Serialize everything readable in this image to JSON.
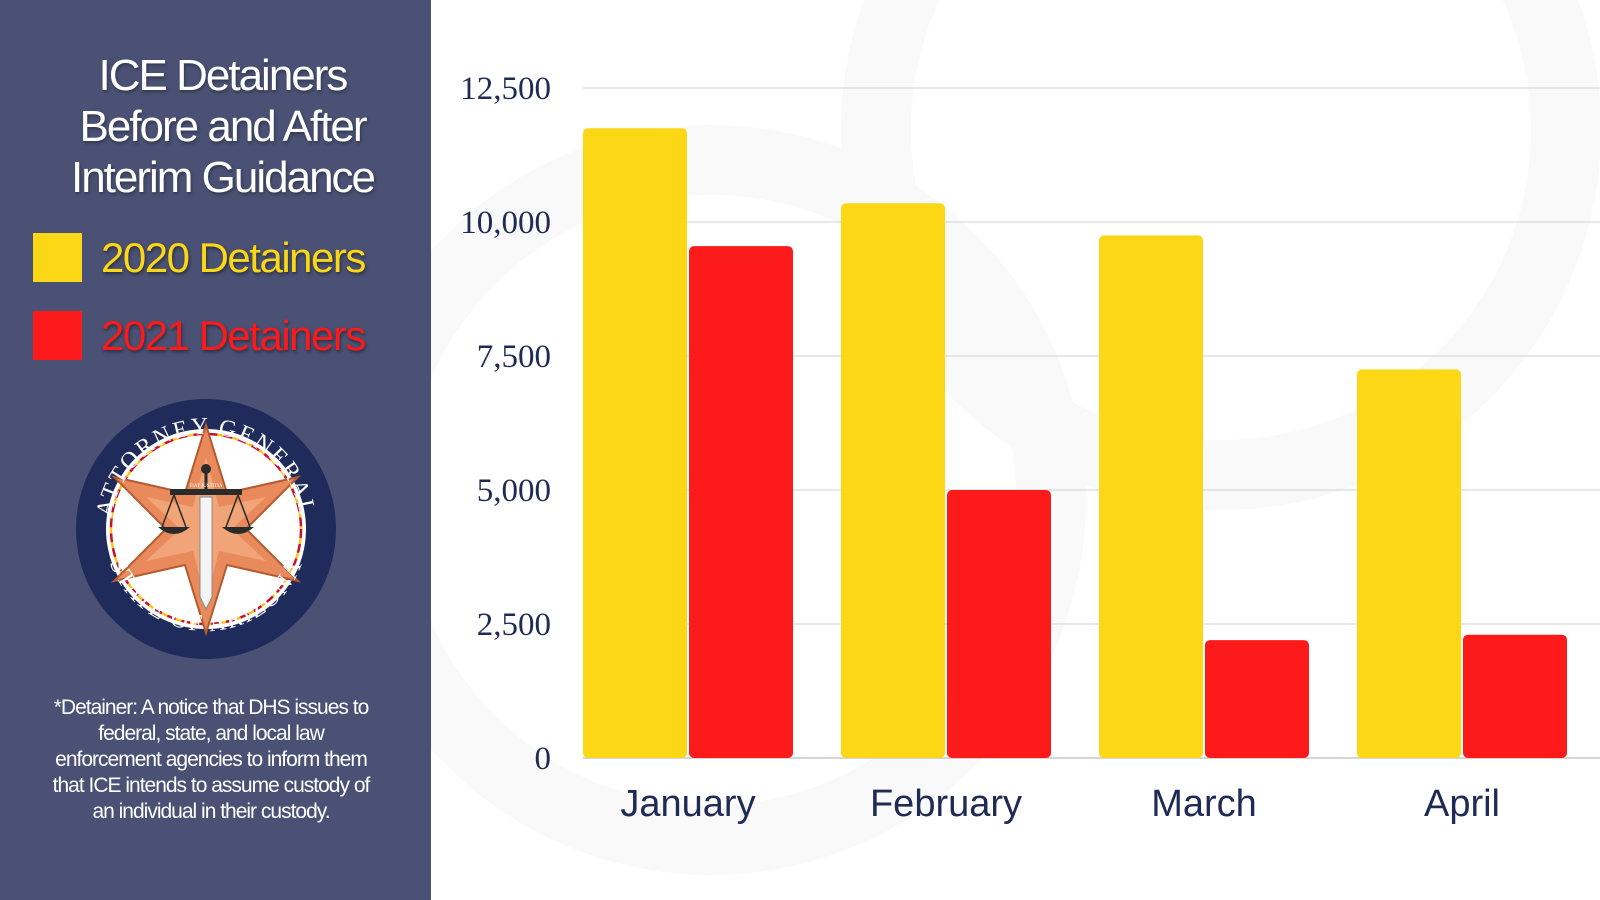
{
  "title_lines": [
    "ICE Detainers",
    "Before and After",
    "Interim Guidance"
  ],
  "legend": [
    {
      "label": "2020 Detainers",
      "color": "#fbd716"
    },
    {
      "label": "2021 Detainers",
      "color": "#fd1a1a"
    }
  ],
  "seal": {
    "top_text": "ATTORNEY GENERAL",
    "bottom_text": "STATE OF ARIZONA",
    "banner_text": "FIAT JUSTITIA"
  },
  "footnote": "*Detainer: A notice that DHS issues to federal, state, and local law enforcement agencies to inform them that ICE intends to assume custody of an individual in their custody.",
  "colors": {
    "sidebar": "#4a5174",
    "axis_text": "#1f2a55",
    "gridline": "#d9d9d9",
    "series_2020": "#fbd716",
    "series_2021": "#fd1a1a"
  },
  "chart_data": {
    "type": "bar",
    "categories": [
      "January",
      "February",
      "March",
      "April"
    ],
    "series": [
      {
        "name": "2020 Detainers",
        "values": [
          11750,
          10350,
          9750,
          7250
        ]
      },
      {
        "name": "2021 Detainers",
        "values": [
          9550,
          5000,
          2200,
          2300
        ]
      }
    ],
    "yticks": [
      "0",
      "2,500",
      "5,000",
      "7,500",
      "10,000",
      "12,500"
    ],
    "ytick_values": [
      0,
      2500,
      5000,
      7500,
      10000,
      12500
    ],
    "ylim": [
      0,
      12500
    ],
    "grid": true,
    "legend_position": "left-panel"
  }
}
